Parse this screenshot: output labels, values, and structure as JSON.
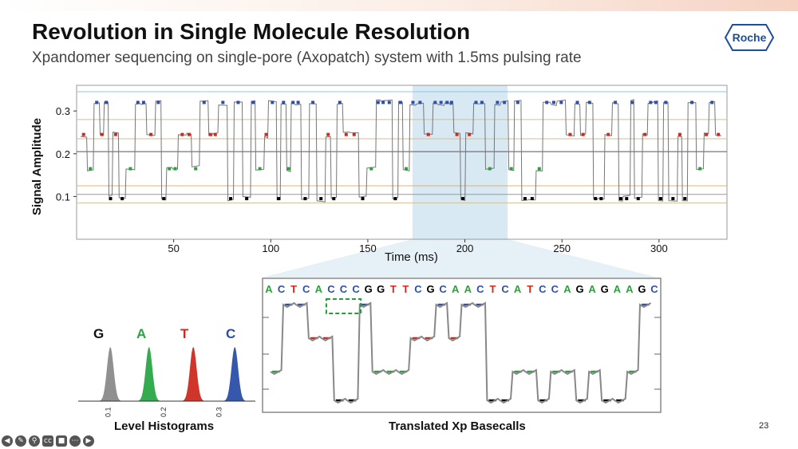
{
  "slide": {
    "title": "Revolution in Single Molecule Resolution",
    "subtitle": "Xpandomer sequencing on single-pore (Axopatch) system with 1.5ms pulsing rate",
    "logo_text": "Roche",
    "page_number": "23"
  },
  "colors": {
    "G": "#000000",
    "A": "#2e9e3e",
    "T": "#cc2a1e",
    "C": "#2e4ea8",
    "trace": "#777777",
    "highlight": "#cfe3f0",
    "logo": "#1b4f9c"
  },
  "chart_data": [
    {
      "type": "line",
      "ylabel": "Signal Amplitude",
      "xlabel": "Time (ms)",
      "x_ticks": [
        50,
        100,
        150,
        200,
        250,
        300
      ],
      "y_ticks": [
        0.1,
        0.2,
        0.3
      ],
      "x_tick_labels": [
        "50",
        "100",
        "150",
        "200",
        "250",
        "300"
      ],
      "y_tick_labels": [
        "0.1",
        "0.2",
        "0.3"
      ],
      "xlim": [
        0,
        335
      ],
      "ylim": [
        0.0,
        0.36
      ],
      "highlight_range": [
        173,
        222
      ],
      "levels": {
        "G": 0.095,
        "A": 0.165,
        "T": 0.245,
        "C": 0.32
      }
    },
    {
      "type": "line",
      "caption": "Translated Xp Basecalls",
      "bases": [
        "A",
        "C",
        "T",
        "C",
        "A",
        "C",
        "C",
        "C",
        "G",
        "G",
        "T",
        "T",
        "C",
        "G",
        "C",
        "A",
        "A",
        "C",
        "T",
        "C",
        "A",
        "T",
        "C",
        "C",
        "A",
        "G",
        "A",
        "G",
        "A",
        "A",
        "G",
        "C"
      ],
      "trace_sequence": [
        "A",
        "C",
        "C",
        "T",
        "T",
        "G",
        "G",
        "C",
        "A",
        "A",
        "A",
        "T",
        "T",
        "C",
        "T",
        "C",
        "C",
        "G",
        "G",
        "A",
        "A",
        "G",
        "A",
        "A",
        "G",
        "A",
        "G",
        "G",
        "A",
        "C"
      ],
      "highlight_bases": [
        5,
        7
      ]
    },
    {
      "type": "area",
      "caption": "Level Histograms",
      "series": [
        {
          "name": "G",
          "center": 0.095,
          "color": "#8a8a8a"
        },
        {
          "name": "A",
          "center": 0.165,
          "color": "#28a745"
        },
        {
          "name": "T",
          "center": 0.245,
          "color": "#cc2a1e"
        },
        {
          "name": "C",
          "center": 0.32,
          "color": "#2a4fa8"
        }
      ],
      "x_tick_labels": [
        "0.1",
        "0.2",
        "0.3"
      ],
      "x_ticks": [
        0.1,
        0.2,
        0.3
      ]
    }
  ],
  "toolbar": {
    "icons": [
      "back-icon",
      "pen-icon",
      "zoom-icon",
      "captions-icon",
      "camera-icon",
      "more-icon",
      "forward-icon"
    ]
  }
}
